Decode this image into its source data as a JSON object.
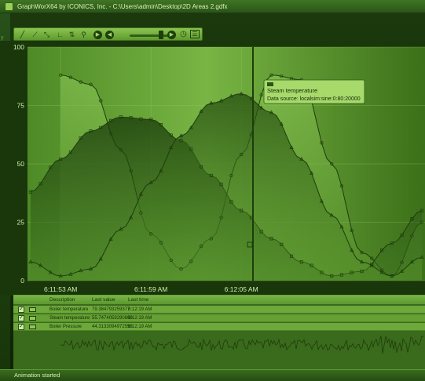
{
  "window": {
    "title": "GraphWorX64 by ICONICS, Inc. - C:\\Users\\admin\\Desktop\\2D Areas 2.gdfx"
  },
  "colors": {
    "accent": "#8ec65a",
    "plot_bg": "#5d9a30",
    "tooltip_bg": "#a7d96b",
    "text_dark": "#142c07"
  },
  "toolbar": {
    "icons": [
      "line-tool-icon",
      "area-chart-icon",
      "xy-chart-icon",
      "axis-icon",
      "zoom-axis-icon",
      "magnifier-icon",
      "play-icon",
      "rewind-icon",
      "forward-icon",
      "clock-icon",
      "grid-toggle-icon"
    ],
    "playback_progress": 0.78
  },
  "chart_data": {
    "type": "area",
    "y_ticks": [
      "100",
      "75",
      "50",
      "25",
      "0"
    ],
    "ylim": [
      0,
      100
    ],
    "x_ticks": [
      "6:11:53 AM",
      "6:11:59 AM",
      "6:12:05 AM"
    ],
    "x_range_seconds_after_6_11_53": [
      -2.2,
      24.2
    ],
    "series": [
      {
        "name": "Boiler temperature",
        "x": [
          0,
          2,
          4,
          6,
          8,
          10,
          12,
          14,
          16,
          18,
          20,
          22,
          24
        ],
        "values": [
          88,
          84,
          56,
          20,
          5,
          18,
          54,
          88,
          86,
          50,
          12,
          2,
          25
        ]
      },
      {
        "name": "Steam temperature",
        "x": [
          -2,
          0,
          2,
          4,
          6,
          8,
          10,
          12,
          14,
          16,
          18,
          20,
          22,
          24
        ],
        "values": [
          38,
          52,
          64,
          70,
          69,
          60,
          45,
          30,
          18,
          8,
          2,
          4,
          16,
          30
        ]
      },
      {
        "name": "Boiler Pressure",
        "x": [
          -2,
          0,
          2,
          4,
          6,
          8,
          10,
          12,
          14,
          16,
          18,
          20,
          22,
          24
        ],
        "values": [
          8,
          2,
          5,
          22,
          42,
          62,
          76,
          80,
          72,
          52,
          28,
          8,
          2,
          10
        ]
      }
    ],
    "grid": true
  },
  "tooltip": {
    "title": "Steam temperature",
    "source": "Data source: localsim:sine:0:80:20000"
  },
  "table": {
    "headers": [
      "Description",
      "Last value",
      "Last time"
    ],
    "rows": [
      {
        "checked": true,
        "description": "Boiler temperature",
        "last_value": "79.384793259377",
        "last_time": "6:12:19 AM"
      },
      {
        "checked": true,
        "description": "Steam temperature",
        "last_value": "55.7474059290809",
        "last_time": "6:12:19 AM"
      },
      {
        "checked": true,
        "description": "Boiler Pressure",
        "last_value": "44.3133094972558",
        "last_time": "6:12:19 AM"
      }
    ]
  },
  "left_strip": {
    "labels": [
      "y",
      "u"
    ]
  },
  "status": {
    "text": "Animation started"
  }
}
